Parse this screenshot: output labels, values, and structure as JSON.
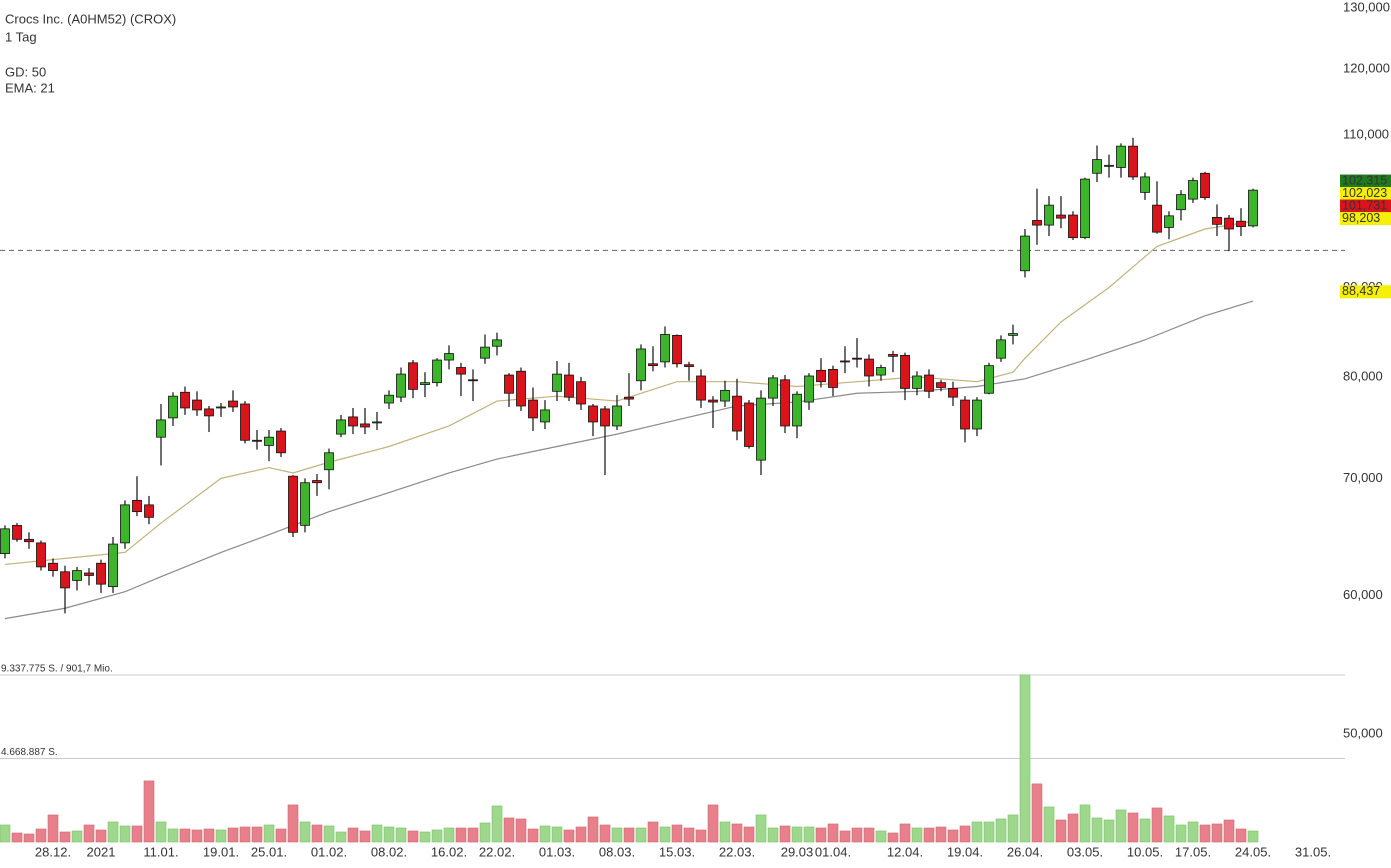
{
  "chart_data": {
    "type": "candlestick",
    "title": "Crocs Inc. (A0HM52) (CROX)",
    "subtitle": "1 Tag",
    "log_scale": true,
    "ylim": [
      43.2,
      131.4
    ],
    "yticks": [
      {
        "value": 130,
        "label": "130,000"
      },
      {
        "value": 120,
        "label": "120,000"
      },
      {
        "value": 110,
        "label": "110,000"
      },
      {
        "value": 90,
        "label": "90,000"
      },
      {
        "value": 80,
        "label": "80,000"
      },
      {
        "value": 70,
        "label": "70,000"
      },
      {
        "value": 60,
        "label": "60,000"
      },
      {
        "value": 50,
        "label": "50,000"
      }
    ],
    "reference_line": 94.5,
    "up_color": "#3db42c",
    "down_color": "#d9141c",
    "volume_up_color": "#9dd88c",
    "volume_down_color": "#e8808b",
    "vlim": [
      0,
      9337775
    ],
    "vticks": [
      {
        "value": 9337775,
        "label": "9.337.775 S. / 901,7 Mio."
      },
      {
        "value": 4668887,
        "label": "4.668.887 S."
      }
    ],
    "categories": [
      null,
      null,
      null,
      null,
      "28.12.",
      null,
      null,
      null,
      "2021",
      null,
      null,
      null,
      null,
      "11.01.",
      null,
      null,
      null,
      null,
      "19.01.",
      null,
      null,
      null,
      "25.01.",
      null,
      null,
      null,
      null,
      "01.02.",
      null,
      null,
      null,
      null,
      "08.02.",
      null,
      null,
      null,
      null,
      "16.02.",
      null,
      null,
      null,
      "22.02.",
      null,
      null,
      null,
      null,
      "01.03.",
      null,
      null,
      null,
      null,
      "08.03.",
      null,
      null,
      null,
      null,
      "15.03.",
      null,
      null,
      null,
      null,
      "22.03.",
      null,
      null,
      null,
      null,
      "29.03",
      null,
      null,
      "01.04.",
      null,
      null,
      null,
      null,
      null,
      "12.04.",
      null,
      null,
      null,
      null,
      "19.04.",
      null,
      null,
      null,
      null,
      "26.04.",
      null,
      null,
      null,
      null,
      "03.05.",
      null,
      null,
      null,
      null,
      "10.05.",
      null,
      null,
      null,
      "17.05.",
      null,
      null,
      null,
      null,
      "24.05.",
      null,
      null,
      null,
      null,
      "31.05."
    ],
    "open": [
      63.4,
      65.8,
      64.6,
      64.3,
      62.6,
      61.9,
      61.2,
      61.8,
      62.6,
      60.7,
      64.3,
      68.0,
      67.6,
      73.9,
      75.8,
      78.4,
      77.6,
      76.7,
      76.8,
      77.5,
      77.2,
      73.6,
      73.1,
      74.5,
      70.2,
      65.8,
      69.8,
      70.8,
      74.2,
      75.9,
      75.2,
      75.3,
      77.3,
      77.9,
      81.5,
      79.2,
      79.4,
      81.8,
      81.0,
      79.7,
      82.0,
      83.3,
      80.2,
      80.6,
      77.6,
      75.4,
      78.5,
      80.2,
      79.5,
      77.0,
      76.7,
      75.0,
      77.9,
      79.6,
      81.4,
      81.6,
      84.5,
      81.3,
      80.1,
      77.6,
      77.5,
      78.0,
      77.3,
      71.7,
      77.8,
      79.7,
      75.0,
      77.4,
      80.7,
      80.8,
      81.7,
      82.0,
      81.9,
      80.2,
      82.4,
      82.3,
      78.8,
      80.2,
      79.4,
      78.8,
      77.6,
      74.7,
      78.3,
      82.0,
      84.5,
      92.0,
      98.3,
      97.7,
      99.0,
      99.0,
      96.1,
      104.6,
      105.6,
      105.4,
      108.4,
      102.0,
      100.3,
      97.4,
      99.7,
      101.1,
      104.6,
      98.7,
      98.6,
      98.2,
      97.6,
      null,
      null,
      null,
      null,
      null
    ],
    "high": [
      65.8,
      66.0,
      65.2,
      64.5,
      63.0,
      62.4,
      62.3,
      62.2,
      62.9,
      64.8,
      68.0,
      70.2,
      68.4,
      77.2,
      78.4,
      79.0,
      78.5,
      77.0,
      77.3,
      78.6,
      77.5,
      74.6,
      74.6,
      74.8,
      70.3,
      70.0,
      70.4,
      72.8,
      76.1,
      76.8,
      76.8,
      76.4,
      78.6,
      81.0,
      81.8,
      80.5,
      82.0,
      83.4,
      81.5,
      80.8,
      84.6,
      84.8,
      80.4,
      81.0,
      78.9,
      77.6,
      81.7,
      81.5,
      80.0,
      77.2,
      77.0,
      78.1,
      80.4,
      83.5,
      83.3,
      85.5,
      84.6,
      81.6,
      80.8,
      78.0,
      79.6,
      79.8,
      77.6,
      78.6,
      80.2,
      80.2,
      78.5,
      80.4,
      82.0,
      81.2,
      83.3,
      84.2,
      82.4,
      81.3,
      82.8,
      82.6,
      80.6,
      80.8,
      79.7,
      79.5,
      78.0,
      77.9,
      81.5,
      84.5,
      85.7,
      97.2,
      102.5,
      101.5,
      101.5,
      99.5,
      104.0,
      108.5,
      107.2,
      108.8,
      109.6,
      104.7,
      103.5,
      99.5,
      102.3,
      104.0,
      104.8,
      100.4,
      99.0,
      99.9,
      102.5,
      null,
      null,
      null,
      null,
      null
    ],
    "low": [
      63.0,
      64.4,
      63.8,
      62.0,
      61.5,
      58.6,
      60.4,
      60.8,
      60.2,
      60.2,
      63.8,
      66.6,
      65.9,
      71.2,
      75.0,
      76.1,
      76.0,
      74.4,
      75.9,
      76.4,
      73.3,
      72.7,
      71.6,
      72.0,
      64.8,
      65.2,
      68.4,
      69.0,
      73.9,
      74.2,
      74.2,
      74.6,
      76.7,
      77.4,
      77.8,
      77.9,
      79.0,
      80.8,
      78.0,
      77.5,
      81.4,
      82.3,
      76.9,
      76.5,
      74.5,
      74.7,
      77.5,
      77.5,
      76.6,
      74.0,
      70.3,
      74.6,
      77.0,
      78.6,
      80.6,
      81.0,
      81.0,
      79.6,
      76.8,
      74.8,
      76.9,
      73.6,
      72.8,
      70.3,
      77.0,
      74.3,
      73.8,
      76.6,
      78.9,
      78.0,
      80.4,
      81.0,
      79.0,
      79.6,
      80.5,
      77.6,
      78.1,
      77.8,
      78.5,
      77.0,
      73.4,
      74.0,
      78.2,
      81.6,
      83.5,
      91.2,
      95.2,
      96.3,
      97.3,
      95.8,
      95.9,
      103.4,
      104.0,
      104.0,
      103.7,
      101.0,
      96.6,
      95.9,
      98.3,
      100.6,
      101.0,
      96.3,
      94.4,
      96.3,
      97.4,
      null,
      null,
      null,
      null,
      null
    ],
    "close": [
      65.5,
      64.6,
      64.4,
      62.3,
      62.0,
      60.6,
      62.0,
      61.6,
      60.9,
      64.2,
      67.6,
      67.0,
      66.5,
      75.6,
      78.0,
      76.8,
      76.6,
      76.0,
      76.9,
      76.9,
      73.6,
      73.5,
      73.9,
      72.4,
      65.2,
      69.6,
      69.6,
      72.4,
      75.6,
      75.0,
      74.9,
      75.4,
      78.1,
      80.3,
      78.7,
      79.4,
      81.8,
      82.5,
      80.3,
      79.6,
      83.2,
      84.0,
      78.3,
      77.0,
      75.8,
      76.6,
      80.3,
      77.9,
      77.2,
      75.4,
      75.0,
      77.0,
      77.7,
      83.0,
      81.2,
      84.6,
      81.4,
      81.1,
      77.6,
      77.4,
      78.6,
      74.5,
      73.0,
      77.8,
      79.9,
      75.0,
      78.2,
      80.1,
      79.5,
      78.9,
      81.6,
      81.9,
      80.1,
      81.0,
      82.2,
      78.8,
      80.1,
      78.5,
      78.9,
      77.9,
      74.7,
      77.6,
      81.2,
      84.0,
      84.7,
      96.3,
      97.7,
      100.3,
      98.6,
      96.1,
      103.8,
      106.5,
      105.7,
      108.4,
      104.1,
      104.1,
      96.8,
      98.9,
      101.7,
      103.6,
      101.3,
      97.8,
      97.2,
      97.5,
      102.3,
      null,
      null,
      null,
      null,
      null
    ],
    "volume": [
      952000,
      504000,
      448000,
      728000,
      1512000,
      560000,
      616000,
      952000,
      672000,
      1120000,
      896000,
      896000,
      3416000,
      1120000,
      728000,
      728000,
      672000,
      728000,
      672000,
      784000,
      840000,
      840000,
      952000,
      728000,
      2072000,
      1120000,
      952000,
      896000,
      560000,
      784000,
      616000,
      952000,
      840000,
      784000,
      616000,
      560000,
      672000,
      784000,
      784000,
      784000,
      1064000,
      2016000,
      1344000,
      1288000,
      728000,
      896000,
      840000,
      672000,
      840000,
      1400000,
      952000,
      784000,
      784000,
      784000,
      1120000,
      840000,
      952000,
      784000,
      672000,
      2072000,
      1120000,
      1008000,
      840000,
      1512000,
      784000,
      896000,
      840000,
      840000,
      784000,
      1008000,
      616000,
      784000,
      784000,
      616000,
      504000,
      1008000,
      784000,
      784000,
      840000,
      672000,
      896000,
      1120000,
      1120000,
      1288000,
      1512000,
      9337775,
      3248000,
      1960000,
      1232000,
      1568000,
      2072000,
      1344000,
      1232000,
      1792000,
      1624000,
      1288000,
      1904000,
      1456000,
      952000,
      1120000,
      952000,
      1008000,
      1232000,
      728000,
      616000,
      null,
      null,
      null,
      null,
      null
    ],
    "ma_lines": [
      {
        "name": "GD: 50",
        "color": "#8a8a8a",
        "x": [
          0,
          5,
          10,
          13,
          18,
          22,
          27,
          32,
          37,
          41,
          46,
          51,
          56,
          61,
          66,
          71,
          76,
          81,
          85,
          90,
          95,
          100,
          104
        ],
        "values": [
          58.2,
          59,
          60.3,
          61.5,
          63.5,
          65,
          67,
          68.7,
          70.5,
          71.8,
          73,
          74.2,
          75.6,
          77,
          77.4,
          78.3,
          78.5,
          79,
          79.8,
          81.8,
          84,
          86.7,
          88.4
        ]
      },
      {
        "name": "EMA: 21",
        "color": "#c2b27c",
        "x": [
          0,
          10,
          13,
          18,
          22,
          24,
          27,
          32,
          37,
          41,
          46,
          51,
          56,
          61,
          66,
          71,
          76,
          81,
          84,
          85,
          88,
          92,
          96,
          100,
          104
        ],
        "values": [
          62.5,
          63.5,
          66,
          70,
          71,
          70.5,
          71.5,
          73,
          75,
          77.5,
          78,
          77.5,
          79.5,
          79.5,
          79,
          79.5,
          80,
          79.5,
          80.5,
          82,
          86,
          90,
          95,
          97.2,
          98.2
        ]
      }
    ],
    "price_labels": [
      {
        "value": 102.315,
        "label": "102,315",
        "color": "#1f7a1f",
        "text_color": "#ffffff"
      },
      {
        "value": 102.023,
        "label": "102,023",
        "color": "#f5f000",
        "text_color": "#000000"
      },
      {
        "value": 101.731,
        "label": "101,731",
        "color": "#d9141c",
        "text_color": "#ffffff"
      },
      {
        "value": 98.203,
        "label": "98,203",
        "color": "#f5f000",
        "text_color": "#000000"
      },
      {
        "value": 88.437,
        "label": "88,437",
        "color": "#f5f000",
        "text_color": "#000000"
      }
    ]
  }
}
